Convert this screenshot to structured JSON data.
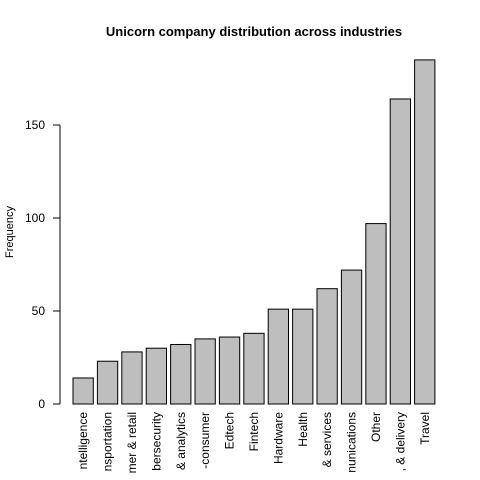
{
  "chart_data": {
    "type": "bar",
    "title": "Unicorn company distribution across industries",
    "y_label": "Frequency",
    "categories": [
      "ntelligence",
      "nsportation",
      "mer & retail",
      "bersecurity",
      "& analytics",
      "-consumer",
      "Edtech",
      "Fintech",
      "Hardware",
      "Health",
      "& services",
      "nunications",
      "Other",
      ", & delivery",
      "Travel"
    ],
    "values": [
      14,
      23,
      28,
      30,
      32,
      35,
      36,
      38,
      51,
      51,
      62,
      72,
      97,
      164,
      185
    ],
    "color": "#bebebe",
    "ylim": [
      0,
      190
    ],
    "yticks": [
      0,
      50,
      100,
      150
    ],
    "grid": false
  }
}
